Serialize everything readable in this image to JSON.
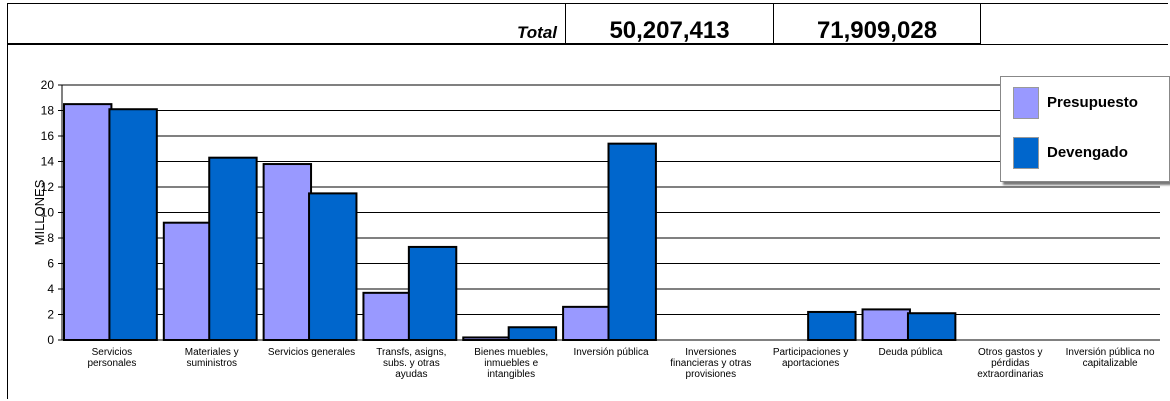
{
  "totals": {
    "label": "Total",
    "presupuesto": "50,207,413",
    "devengado": "71,909,028"
  },
  "colors": {
    "presupuesto": "#9999ff",
    "devengado": "#0066cc"
  },
  "chart_data": {
    "type": "bar",
    "ylabel": "MILLONES",
    "ylim": [
      0,
      20
    ],
    "yticks": [
      0,
      2,
      4,
      6,
      8,
      10,
      12,
      14,
      16,
      18,
      20
    ],
    "grid": true,
    "legend_position": "top-right",
    "categories": [
      [
        "Servicios",
        "personales"
      ],
      [
        "Materiales y",
        "suministros"
      ],
      [
        "Servicios generales"
      ],
      [
        "Transfs, asigns,",
        "subs. y otras",
        "ayudas"
      ],
      [
        "Bienes muebles,",
        "inmuebles e",
        "intangibles"
      ],
      [
        "Inversión pública"
      ],
      [
        "Inversiones",
        "financieras y otras",
        "provisiones"
      ],
      [
        "Participaciones y",
        "aportaciones"
      ],
      [
        "Deuda pública"
      ],
      [
        "Otros gastos y",
        "pérdidas",
        "extraordinarias"
      ],
      [
        "Inversión pública no",
        "capitalizable"
      ]
    ],
    "series": [
      {
        "name": "Presupuesto",
        "values": [
          18.5,
          9.2,
          13.8,
          3.7,
          0.2,
          2.6,
          0,
          0,
          2.4,
          0,
          0
        ]
      },
      {
        "name": "Devengado",
        "values": [
          18.1,
          14.3,
          11.5,
          7.3,
          1.0,
          15.4,
          0,
          2.2,
          2.1,
          0,
          0
        ]
      }
    ]
  }
}
